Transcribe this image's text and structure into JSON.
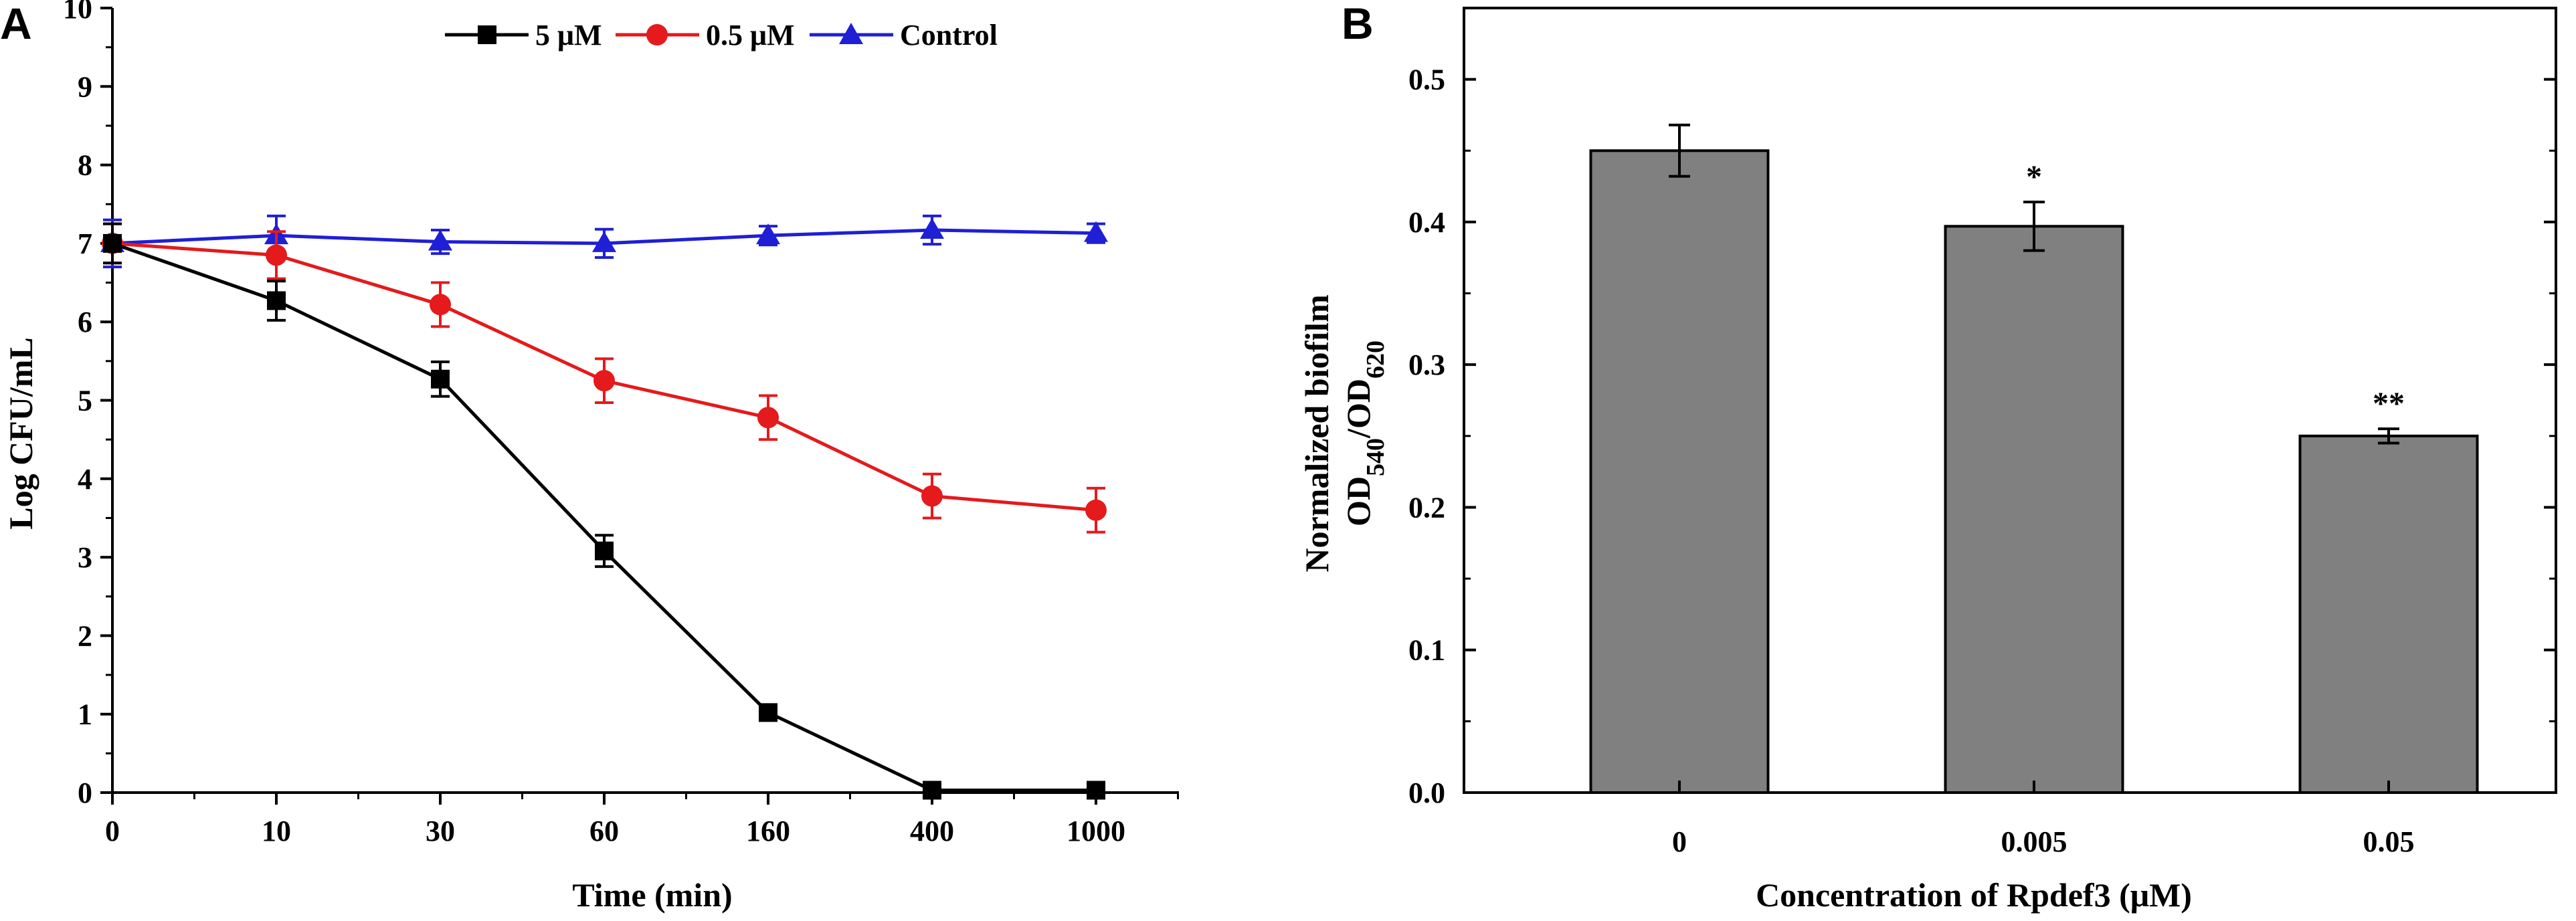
{
  "colors": {
    "series_5uM": "#000000",
    "series_05uM": "#e41a1c",
    "series_control": "#1f1fd6",
    "bar_fill": "#808080",
    "axis": "#000000"
  },
  "chart_data": [
    {
      "panel": "A",
      "type": "line",
      "xlabel": "Time (min)",
      "ylabel": "Log CFU/mL",
      "categories": [
        "0",
        "10",
        "30",
        "60",
        "160",
        "400",
        "1000"
      ],
      "ylim": [
        0,
        10
      ],
      "yticks": [
        "0",
        "1",
        "2",
        "3",
        "4",
        "5",
        "6",
        "7",
        "8",
        "9",
        "10"
      ],
      "legend_position": "top-center",
      "series": [
        {
          "name": "5 μM",
          "marker": "square",
          "color": "#000000",
          "values": [
            7.0,
            6.27,
            5.27,
            3.08,
            1.02,
            0.03,
            0.03
          ],
          "errors": [
            0.25,
            0.25,
            0.22,
            0.2,
            0.08,
            0.04,
            0.04
          ]
        },
        {
          "name": "0.5 μM",
          "marker": "circle",
          "color": "#e41a1c",
          "values": [
            7.0,
            6.85,
            6.22,
            5.25,
            4.78,
            3.78,
            3.6
          ],
          "errors": [
            0.25,
            0.3,
            0.28,
            0.28,
            0.28,
            0.28,
            0.28
          ]
        },
        {
          "name": "Control",
          "marker": "triangle",
          "color": "#1f1fd6",
          "values": [
            7.0,
            7.1,
            7.02,
            7.0,
            7.1,
            7.17,
            7.13
          ],
          "errors": [
            0.3,
            0.25,
            0.15,
            0.18,
            0.12,
            0.18,
            0.12
          ]
        }
      ]
    },
    {
      "panel": "B",
      "type": "bar",
      "xlabel": "Concentration of Rpdef3 (μM)",
      "ylabel_line1": "Normalized biofilm",
      "ylabel_line2": {
        "a": "OD",
        "sub1": "540",
        "b": "/OD",
        "sub2": "620"
      },
      "categories": [
        "0",
        "0.005",
        "0.05"
      ],
      "values": [
        0.45,
        0.397,
        0.25
      ],
      "errors": [
        0.018,
        0.017,
        0.005
      ],
      "significance": [
        "",
        "*",
        "**"
      ],
      "ylim": [
        0,
        0.55
      ],
      "yticks": [
        "0.0",
        "0.1",
        "0.2",
        "0.3",
        "0.4",
        "0.5"
      ]
    }
  ]
}
